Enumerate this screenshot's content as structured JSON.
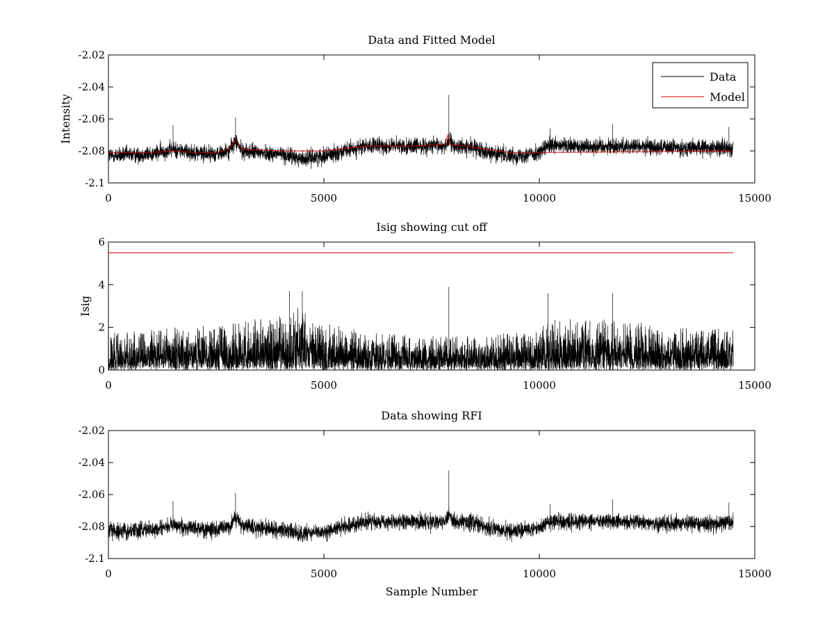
{
  "chart_data": [
    {
      "type": "line",
      "title": "Data and Fitted Model",
      "xlabel": "",
      "ylabel": "Intensity",
      "xlim": [
        0,
        15000
      ],
      "ylim": [
        -2.1,
        -2.02
      ],
      "xticks": [
        0,
        5000,
        10000,
        15000
      ],
      "xtick_labels": [
        "0",
        "5000",
        "10000",
        "15000"
      ],
      "yticks": [
        -2.1,
        -2.08,
        -2.06,
        -2.04,
        -2.02
      ],
      "ytick_labels": [
        "-2.1",
        "-2.08",
        "-2.06",
        "-2.04",
        "-2.02"
      ],
      "grid": false,
      "legend": {
        "placement": "top-right",
        "entries": [
          "Data",
          "Model"
        ]
      },
      "series": [
        {
          "name": "Data",
          "color": "#000000",
          "render": "noisy",
          "n_samples": 14500,
          "baseline": [
            [
              0,
              -2.083
            ],
            [
              1000,
              -2.082
            ],
            [
              1500,
              -2.079
            ],
            [
              2000,
              -2.081
            ],
            [
              2500,
              -2.082
            ],
            [
              2800,
              -2.08
            ],
            [
              2950,
              -2.074
            ],
            [
              3100,
              -2.08
            ],
            [
              4000,
              -2.082
            ],
            [
              4500,
              -2.085
            ],
            [
              5000,
              -2.083
            ],
            [
              6000,
              -2.077
            ],
            [
              7000,
              -2.077
            ],
            [
              7800,
              -2.077
            ],
            [
              7900,
              -2.073
            ],
            [
              8000,
              -2.077
            ],
            [
              8500,
              -2.078
            ],
            [
              9000,
              -2.082
            ],
            [
              9500,
              -2.083
            ],
            [
              10000,
              -2.081
            ],
            [
              10200,
              -2.077
            ],
            [
              12000,
              -2.077
            ],
            [
              13000,
              -2.078
            ],
            [
              14500,
              -2.078
            ]
          ],
          "noise_amplitude": 0.0045,
          "spikes": [
            [
              1500,
              -2.064
            ],
            [
              2950,
              -2.059
            ],
            [
              7900,
              -2.045
            ],
            [
              10250,
              -2.066
            ],
            [
              11700,
              -2.063
            ],
            [
              14400,
              -2.065
            ]
          ]
        },
        {
          "name": "Model",
          "color": "#cc0000",
          "render": "line",
          "points": [
            [
              0,
              -2.081
            ],
            [
              1000,
              -2.081
            ],
            [
              1500,
              -2.08
            ],
            [
              2000,
              -2.081
            ],
            [
              2500,
              -2.081
            ],
            [
              2800,
              -2.079
            ],
            [
              2950,
              -2.073
            ],
            [
              3100,
              -2.079
            ],
            [
              4000,
              -2.08
            ],
            [
              5000,
              -2.08
            ],
            [
              6000,
              -2.077
            ],
            [
              7000,
              -2.077
            ],
            [
              7800,
              -2.076
            ],
            [
              7880,
              -2.07
            ],
            [
              7920,
              -2.076
            ],
            [
              8300,
              -2.077
            ],
            [
              8800,
              -2.079
            ],
            [
              9300,
              -2.081
            ],
            [
              10000,
              -2.081
            ],
            [
              14500,
              -2.08
            ]
          ]
        }
      ]
    },
    {
      "type": "line",
      "title": "Isig showing cut off",
      "xlabel": "",
      "ylabel": "Isig",
      "xlim": [
        0,
        15000
      ],
      "ylim": [
        0,
        6
      ],
      "xticks": [
        0,
        5000,
        10000,
        15000
      ],
      "xtick_labels": [
        "0",
        "5000",
        "10000",
        "15000"
      ],
      "yticks": [
        0,
        2,
        4,
        6
      ],
      "ytick_labels": [
        "0",
        "2",
        "4",
        "6"
      ],
      "grid": false,
      "series": [
        {
          "color": "#000000",
          "render": "noisy-abs",
          "n_samples": 14500,
          "envelope": [
            [
              0,
              1.8
            ],
            [
              1500,
              2.0
            ],
            [
              2500,
              2.1
            ],
            [
              4000,
              2.6
            ],
            [
              4500,
              3.0
            ],
            [
              5000,
              2.2
            ],
            [
              6000,
              1.8
            ],
            [
              7500,
              1.6
            ],
            [
              8500,
              1.7
            ],
            [
              10000,
              1.8
            ],
            [
              10200,
              2.4
            ],
            [
              12000,
              2.4
            ],
            [
              13000,
              2.0
            ],
            [
              14500,
              2.0
            ]
          ],
          "spikes": [
            [
              4200,
              3.7
            ],
            [
              4500,
              3.7
            ],
            [
              7900,
              3.9
            ],
            [
              10200,
              3.6
            ],
            [
              11700,
              3.6
            ]
          ]
        },
        {
          "color": "#cc0000",
          "render": "line",
          "points": [
            [
              0,
              5.5
            ],
            [
              14500,
              5.5
            ]
          ]
        }
      ]
    },
    {
      "type": "line",
      "title": "Data showing RFI",
      "xlabel": "Sample Number",
      "ylabel": "",
      "xlim": [
        0,
        15000
      ],
      "ylim": [
        -2.1,
        -2.02
      ],
      "xticks": [
        0,
        5000,
        10000,
        15000
      ],
      "xtick_labels": [
        "0",
        "5000",
        "10000",
        "15000"
      ],
      "yticks": [
        -2.1,
        -2.08,
        -2.06,
        -2.04,
        -2.02
      ],
      "ytick_labels": [
        "-2.1",
        "-2.08",
        "-2.06",
        "-2.04",
        "-2.02"
      ],
      "grid": false,
      "series": [
        {
          "color": "#000000",
          "render": "noisy",
          "n_samples": 14500,
          "baseline": [
            [
              0,
              -2.083
            ],
            [
              1000,
              -2.082
            ],
            [
              1500,
              -2.079
            ],
            [
              2000,
              -2.081
            ],
            [
              2500,
              -2.082
            ],
            [
              2800,
              -2.08
            ],
            [
              2950,
              -2.074
            ],
            [
              3100,
              -2.08
            ],
            [
              4000,
              -2.082
            ],
            [
              4500,
              -2.085
            ],
            [
              5000,
              -2.083
            ],
            [
              6000,
              -2.077
            ],
            [
              7000,
              -2.077
            ],
            [
              7800,
              -2.077
            ],
            [
              7900,
              -2.073
            ],
            [
              8000,
              -2.077
            ],
            [
              8500,
              -2.078
            ],
            [
              9000,
              -2.082
            ],
            [
              9500,
              -2.083
            ],
            [
              10000,
              -2.081
            ],
            [
              10200,
              -2.077
            ],
            [
              12000,
              -2.077
            ],
            [
              13000,
              -2.078
            ],
            [
              14500,
              -2.078
            ]
          ],
          "noise_amplitude": 0.0045,
          "spikes": [
            [
              1500,
              -2.064
            ],
            [
              2950,
              -2.059
            ],
            [
              7900,
              -2.045
            ],
            [
              10250,
              -2.066
            ],
            [
              11700,
              -2.063
            ],
            [
              14400,
              -2.065
            ]
          ]
        }
      ]
    }
  ]
}
